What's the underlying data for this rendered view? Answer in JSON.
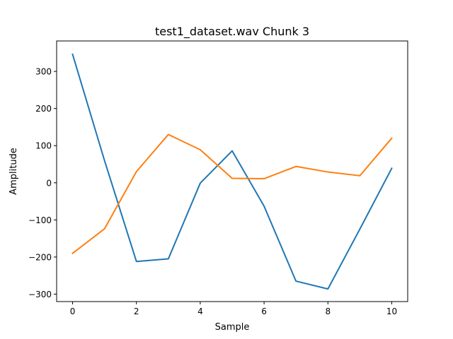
{
  "chart_data": {
    "type": "line",
    "title": "test1_dataset.wav Chunk 3",
    "xlabel": "Sample",
    "ylabel": "Amplitude",
    "xlim": [
      -0.5,
      10.5
    ],
    "ylim": [
      -320,
      382
    ],
    "x": [
      0,
      1,
      2,
      3,
      4,
      5,
      6,
      7,
      8,
      9,
      10
    ],
    "xticks": [
      0,
      2,
      4,
      6,
      8,
      10
    ],
    "xtick_labels": [
      "0",
      "2",
      "4",
      "6",
      "8",
      "10"
    ],
    "yticks": [
      300,
      200,
      100,
      0,
      -100,
      -200,
      -300
    ],
    "ytick_labels": [
      "300",
      "200",
      "100",
      "0",
      "−100",
      "−200",
      "−300"
    ],
    "grid": false,
    "series": [
      {
        "color": "#1f77b4",
        "values": [
          346,
          60,
          -212,
          -205,
          -1,
          86,
          -63,
          -265,
          -286,
          -125,
          39
        ]
      },
      {
        "color": "#ff7f0e",
        "values": [
          -190,
          -124,
          30,
          130,
          89,
          12,
          11,
          44,
          29,
          19,
          120
        ]
      }
    ]
  }
}
